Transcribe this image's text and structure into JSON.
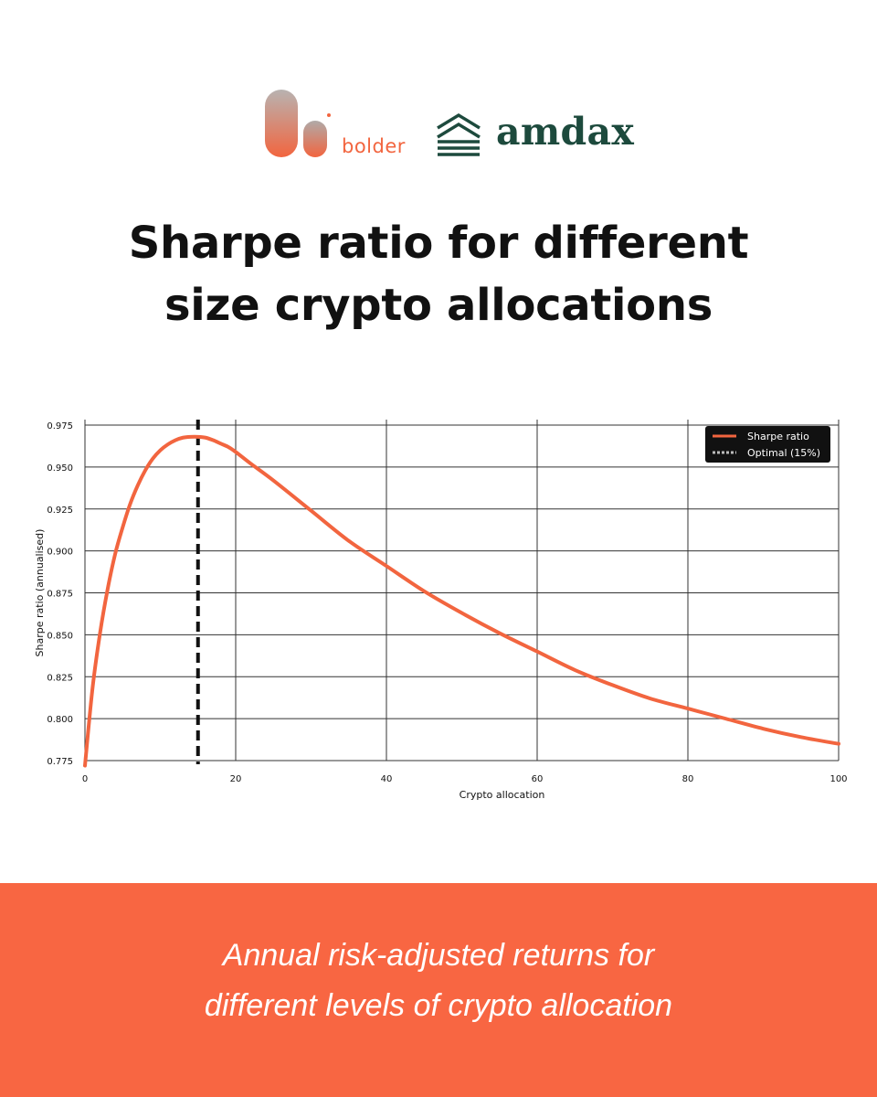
{
  "brand": {
    "bolder_name": "bolder",
    "amdax_name": "amdax",
    "colors": {
      "bolder_orange": "#f2653f",
      "amdax_green": "#1d4a3d"
    }
  },
  "headline": {
    "line1": "Sharpe ratio for different",
    "line2": "size crypto allocations"
  },
  "chart_data": {
    "type": "line",
    "xlabel": "Crypto allocation",
    "ylabel": "Sharpe ratio (annualised)",
    "xlim": [
      0,
      100
    ],
    "ylim": [
      0.775,
      0.975
    ],
    "x_ticks": [
      0,
      20,
      40,
      60,
      80,
      100
    ],
    "y_ticks": [
      0.775,
      0.8,
      0.825,
      0.85,
      0.875,
      0.9,
      0.925,
      0.95,
      0.975
    ],
    "grid": true,
    "legend_position": "top-right",
    "series": [
      {
        "name": "Sharpe ratio",
        "color": "#f2653f",
        "x": [
          0,
          1,
          2,
          3,
          4,
          5,
          6,
          7,
          8,
          9,
          10,
          11,
          12,
          13,
          14,
          15,
          16,
          17,
          18,
          19,
          20,
          22,
          25,
          30,
          35,
          40,
          45,
          50,
          55,
          60,
          65,
          70,
          75,
          80,
          85,
          90,
          95,
          100
        ],
        "y": [
          0.772,
          0.818,
          0.851,
          0.877,
          0.898,
          0.914,
          0.928,
          0.939,
          0.948,
          0.955,
          0.96,
          0.9635,
          0.966,
          0.9675,
          0.968,
          0.968,
          0.9675,
          0.966,
          0.964,
          0.962,
          0.959,
          0.952,
          0.942,
          0.924,
          0.906,
          0.891,
          0.876,
          0.863,
          0.851,
          0.84,
          0.829,
          0.82,
          0.812,
          0.806,
          0.8,
          0.794,
          0.789,
          0.785
        ]
      },
      {
        "name": "Optimal (15%)",
        "color": "#111111",
        "style": "dashed",
        "x": [
          15,
          15
        ]
      }
    ]
  },
  "footer": {
    "caption_line1": "Annual risk-adjusted returns for",
    "caption_line2": "different levels of crypto allocation",
    "background": "#f86642"
  }
}
